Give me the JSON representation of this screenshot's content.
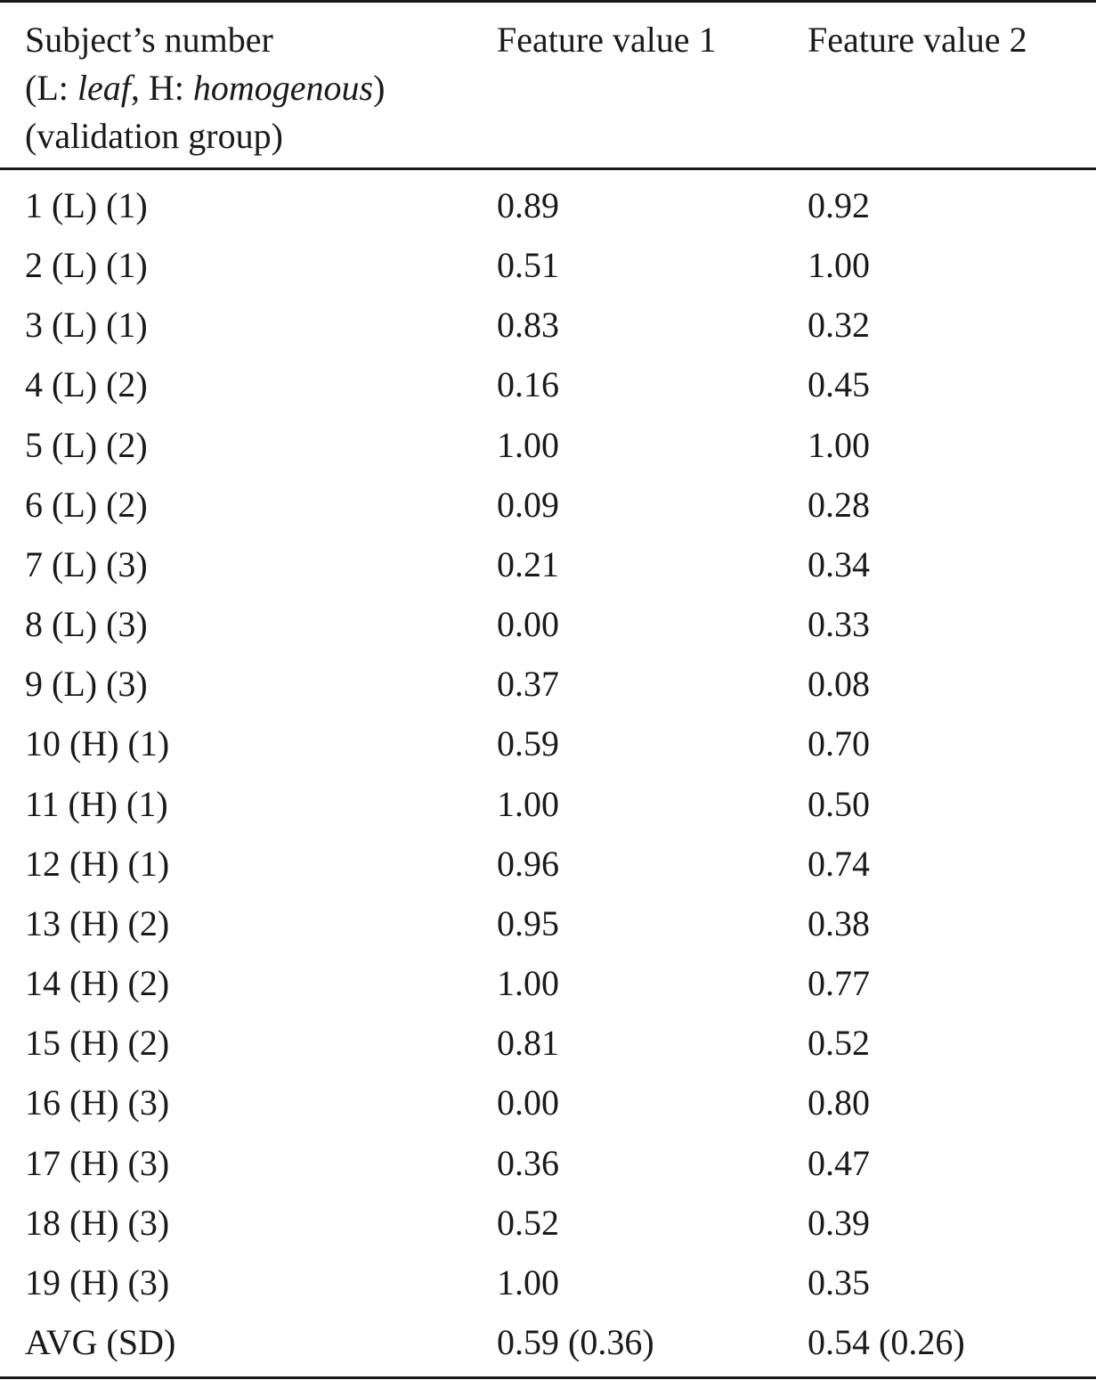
{
  "table": {
    "headers": {
      "col1": {
        "line1": "Subject’s number",
        "line2_pre": "(L: ",
        "line2_leaf": "leaf",
        "line2_mid": ", H: ",
        "line2_homogenous": "homogenous",
        "line2_post": ")",
        "line3": "(validation group)"
      },
      "col2": "Feature value 1",
      "col3": "Feature value 2"
    },
    "rows": [
      [
        "1 (L) (1)",
        "0.89",
        "0.92"
      ],
      [
        "2 (L) (1)",
        "0.51",
        "1.00"
      ],
      [
        "3 (L) (1)",
        "0.83",
        "0.32"
      ],
      [
        "4 (L) (2)",
        "0.16",
        "0.45"
      ],
      [
        "5 (L) (2)",
        "1.00",
        "1.00"
      ],
      [
        "6 (L) (2)",
        "0.09",
        "0.28"
      ],
      [
        "7 (L) (3)",
        "0.21",
        "0.34"
      ],
      [
        "8 (L) (3)",
        "0.00",
        "0.33"
      ],
      [
        "9 (L) (3)",
        "0.37",
        "0.08"
      ],
      [
        "10 (H) (1)",
        "0.59",
        "0.70"
      ],
      [
        "11 (H) (1)",
        "1.00",
        "0.50"
      ],
      [
        "12 (H) (1)",
        "0.96",
        "0.74"
      ],
      [
        "13 (H) (2)",
        "0.95",
        "0.38"
      ],
      [
        "14 (H) (2)",
        "1.00",
        "0.77"
      ],
      [
        "15 (H) (2)",
        "0.81",
        "0.52"
      ],
      [
        "16 (H) (3)",
        "0.00",
        "0.80"
      ],
      [
        "17 (H) (3)",
        "0.36",
        "0.47"
      ],
      [
        "18 (H) (3)",
        "0.52",
        "0.39"
      ],
      [
        "19 (H) (3)",
        "1.00",
        "0.35"
      ],
      [
        "AVG (SD)",
        "0.59 (0.36)",
        "0.54 (0.26)"
      ]
    ]
  }
}
